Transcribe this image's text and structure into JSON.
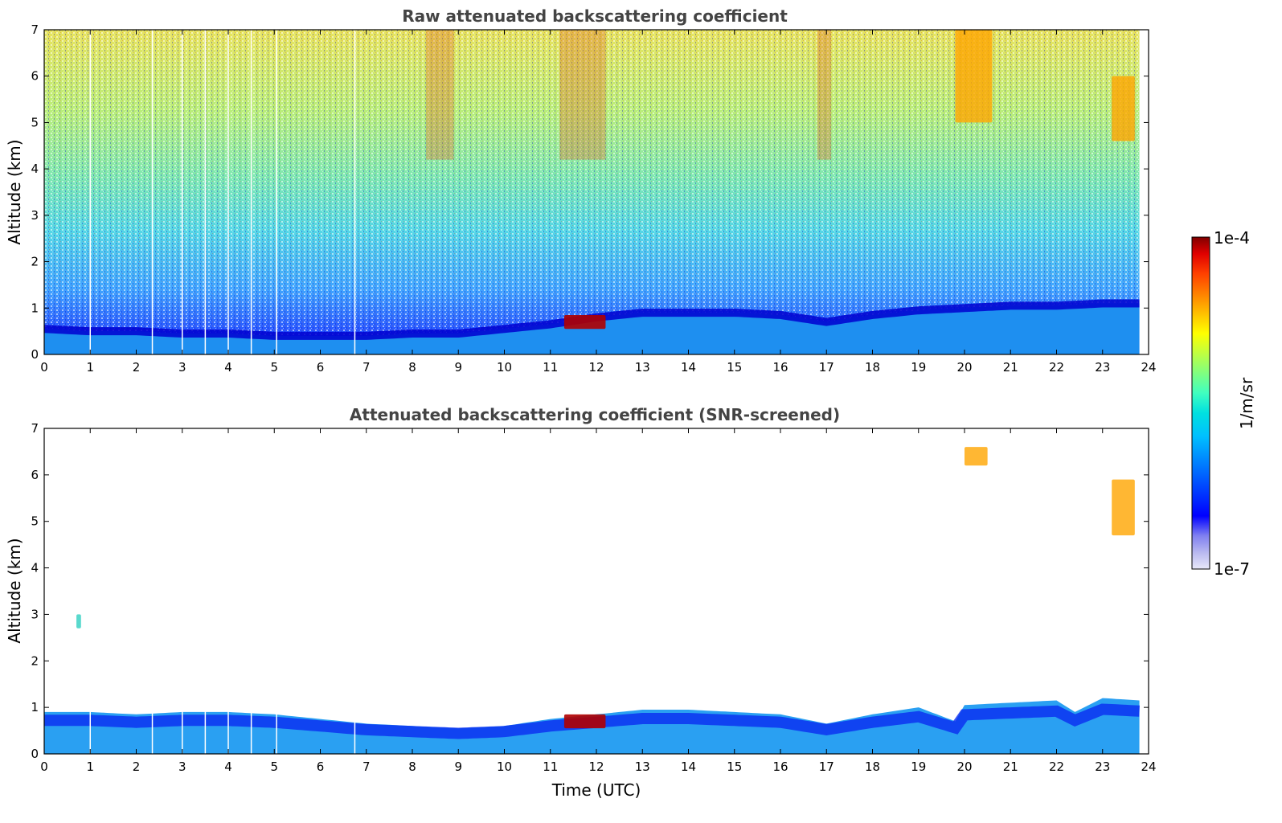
{
  "chart_data": [
    {
      "type": "heatmap",
      "title": "Raw attenuated backscattering coefficient",
      "xlabel": "",
      "ylabel": "Altitude (km)",
      "xlim": [
        0,
        24
      ],
      "ylim": [
        0,
        7
      ],
      "xticks": [
        0,
        1,
        2,
        3,
        4,
        5,
        6,
        7,
        8,
        9,
        10,
        11,
        12,
        13,
        14,
        15,
        16,
        17,
        18,
        19,
        20,
        21,
        22,
        23,
        24
      ],
      "yticks": [
        0,
        1,
        2,
        3,
        4,
        5,
        6,
        7
      ],
      "data_end_hour": 23.8,
      "boundary_layer_top_km": [
        [
          0,
          0.55
        ],
        [
          1,
          0.5
        ],
        [
          2,
          0.5
        ],
        [
          3,
          0.45
        ],
        [
          4,
          0.45
        ],
        [
          5,
          0.4
        ],
        [
          6,
          0.4
        ],
        [
          7,
          0.4
        ],
        [
          8,
          0.45
        ],
        [
          9,
          0.45
        ],
        [
          10,
          0.55
        ],
        [
          11,
          0.65
        ],
        [
          12,
          0.8
        ],
        [
          13,
          0.9
        ],
        [
          14,
          0.9
        ],
        [
          15,
          0.9
        ],
        [
          16,
          0.85
        ],
        [
          17,
          0.7
        ],
        [
          18,
          0.85
        ],
        [
          19,
          0.95
        ],
        [
          20,
          1.0
        ],
        [
          21,
          1.05
        ],
        [
          22,
          1.05
        ],
        [
          23,
          1.1
        ],
        [
          23.8,
          1.1
        ]
      ],
      "features": [
        {
          "label": "cloud near 11-12 UTC",
          "x": [
            11.3,
            12.2
          ],
          "altitude_km": [
            0.55,
            0.85
          ],
          "level": "1e-4"
        },
        {
          "label": "cirrus near 20 UTC",
          "x": [
            19.8,
            20.6
          ],
          "altitude_km": [
            5.0,
            7.0
          ],
          "level": "high"
        },
        {
          "label": "cirrus near 23.4 UTC",
          "x": [
            23.2,
            23.7
          ],
          "altitude_km": [
            4.6,
            6.0
          ],
          "level": "high"
        }
      ],
      "gaps_hours": [
        1.0,
        2.35,
        3.0,
        3.5,
        4.0,
        4.5,
        5.05,
        6.75
      ]
    },
    {
      "type": "heatmap",
      "title": "Attenuated backscattering coefficient (SNR-screened)",
      "xlabel": "Time (UTC)",
      "ylabel": "Altitude (km)",
      "xlim": [
        0,
        24
      ],
      "ylim": [
        0,
        7
      ],
      "xticks": [
        0,
        1,
        2,
        3,
        4,
        5,
        6,
        7,
        8,
        9,
        10,
        11,
        12,
        13,
        14,
        15,
        16,
        17,
        18,
        19,
        20,
        21,
        22,
        23,
        24
      ],
      "yticks": [
        0,
        1,
        2,
        3,
        4,
        5,
        6,
        7
      ],
      "data_end_hour": 23.8,
      "signal_top_km": [
        [
          0,
          0.9
        ],
        [
          1,
          0.9
        ],
        [
          2,
          0.85
        ],
        [
          3,
          0.9
        ],
        [
          4,
          0.9
        ],
        [
          5,
          0.85
        ],
        [
          6,
          0.75
        ],
        [
          7,
          0.65
        ],
        [
          8,
          0.6
        ],
        [
          9,
          0.55
        ],
        [
          10,
          0.6
        ],
        [
          11,
          0.75
        ],
        [
          12,
          0.85
        ],
        [
          13,
          0.95
        ],
        [
          14,
          0.95
        ],
        [
          15,
          0.9
        ],
        [
          16,
          0.85
        ],
        [
          17,
          0.65
        ],
        [
          18,
          0.85
        ],
        [
          19,
          1.0
        ],
        [
          19.8,
          0.7
        ],
        [
          20,
          1.05
        ],
        [
          21,
          1.1
        ],
        [
          22,
          1.15
        ],
        [
          22.4,
          0.9
        ],
        [
          23,
          1.2
        ],
        [
          23.8,
          1.15
        ]
      ],
      "features": [
        {
          "label": "cloud near 11-12 UTC",
          "x": [
            11.3,
            12.2
          ],
          "altitude_km": [
            0.55,
            0.85
          ],
          "level": "1e-4"
        },
        {
          "label": "cirrus near 20.2 UTC",
          "x": [
            20.0,
            20.5
          ],
          "altitude_km": [
            6.2,
            6.6
          ],
          "level": "high"
        },
        {
          "label": "cirrus near 23.4 UTC",
          "x": [
            23.2,
            23.7
          ],
          "altitude_km": [
            4.7,
            5.9
          ],
          "level": "high"
        },
        {
          "label": "isolated return near 0.75 UTC",
          "x": [
            0.7,
            0.8
          ],
          "altitude_km": [
            2.7,
            3.0
          ],
          "level": "mid"
        }
      ],
      "gaps_hours": [
        1.0,
        2.35,
        3.0,
        3.5,
        4.0,
        4.5,
        5.05,
        6.75
      ]
    }
  ],
  "colorbar": {
    "label": "1/m/sr",
    "max_label": "1e-4",
    "min_label": "1e-7",
    "scale": "log",
    "colormap": "jet",
    "colors": [
      "#e8e8f8",
      "#b8b8f0",
      "#8080f0",
      "#0000ff",
      "#0040ff",
      "#0080ff",
      "#00c0ff",
      "#00e0e0",
      "#40ffc0",
      "#80ff80",
      "#c0ff40",
      "#ffff00",
      "#ffc000",
      "#ff8000",
      "#ff4000",
      "#e00000",
      "#800000"
    ]
  }
}
